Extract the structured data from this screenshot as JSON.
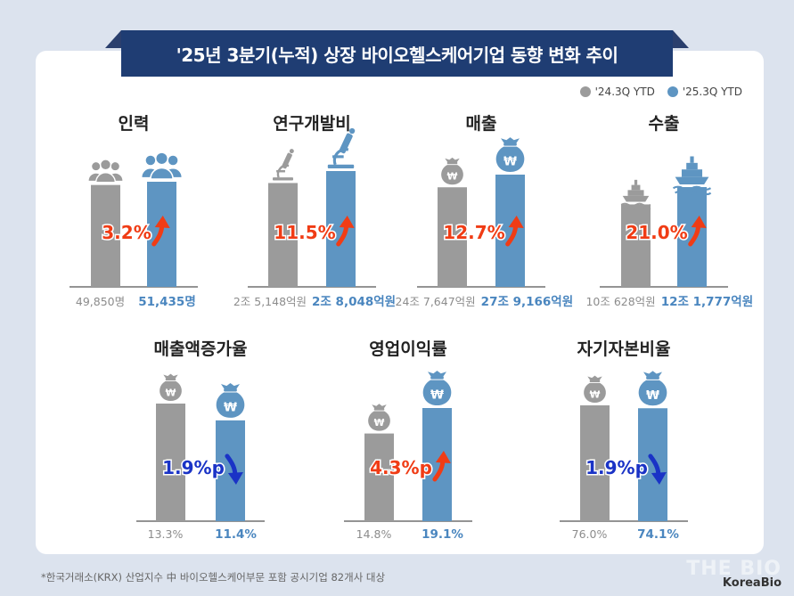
{
  "title": "'25년 3분기(누적) 상장 바이오헬스케어기업 동향 변화 추이",
  "legend": {
    "prev": "'24.3Q YTD",
    "curr": "'25.3Q YTD"
  },
  "colors": {
    "prev": "#9b9b9b",
    "curr": "#5e95c2",
    "up": "#f03c15",
    "down": "#1a33c6",
    "prev_text": "#8c8c8c",
    "curr_text": "#4a86bf"
  },
  "footnote": "*한국거래소(KRX) 산업지수 中 바이오헬스케어부문 포함 공시기업 82개사 대상",
  "brand": {
    "the": "THE BIO",
    "koreabio": "KoreaBio"
  },
  "chart_data": [
    {
      "type": "bar",
      "title": "인력",
      "categories": [
        "'24.3Q YTD",
        "'25.3Q YTD"
      ],
      "values": [
        49850,
        51435
      ],
      "unit": "명",
      "labels": [
        "49,850명",
        "51,435명"
      ],
      "change": "3.2%",
      "direction": "up",
      "icon": "people-icon"
    },
    {
      "type": "bar",
      "title": "연구개발비",
      "categories": [
        "'24.3Q YTD",
        "'25.3Q YTD"
      ],
      "values": [
        25148,
        28048
      ],
      "unit": "억원",
      "labels": [
        "2조 5,148억원",
        "2조 8,048억원"
      ],
      "change": "11.5%",
      "direction": "up",
      "icon": "microscope-icon"
    },
    {
      "type": "bar",
      "title": "매출",
      "categories": [
        "'24.3Q YTD",
        "'25.3Q YTD"
      ],
      "values": [
        247647,
        279166
      ],
      "unit": "억원",
      "labels": [
        "24조 7,647억원",
        "27조 9,166억원"
      ],
      "change": "12.7%",
      "direction": "up",
      "icon": "money-bag-icon"
    },
    {
      "type": "bar",
      "title": "수출",
      "categories": [
        "'24.3Q YTD",
        "'25.3Q YTD"
      ],
      "values": [
        100628,
        121777
      ],
      "unit": "억원",
      "labels": [
        "10조 628억원",
        "12조 1,777억원"
      ],
      "change": "21.0%",
      "direction": "up",
      "icon": "ship-icon"
    },
    {
      "type": "bar",
      "title": "매출액증가율",
      "categories": [
        "'24.3Q YTD",
        "'25.3Q YTD"
      ],
      "values": [
        13.3,
        11.4
      ],
      "unit": "%",
      "labels": [
        "13.3%",
        "11.4%"
      ],
      "change": "1.9%p",
      "direction": "down",
      "icon": "money-bag-icon"
    },
    {
      "type": "bar",
      "title": "영업이익률",
      "categories": [
        "'24.3Q YTD",
        "'25.3Q YTD"
      ],
      "values": [
        14.8,
        19.1
      ],
      "unit": "%",
      "labels": [
        "14.8%",
        "19.1%"
      ],
      "change": "4.3%p",
      "direction": "up",
      "icon": "money-bag-icon"
    },
    {
      "type": "bar",
      "title": "자기자본비율",
      "categories": [
        "'24.3Q YTD",
        "'25.3Q YTD"
      ],
      "values": [
        76.0,
        74.1
      ],
      "unit": "%",
      "labels": [
        "76.0%",
        "74.1%"
      ],
      "change": "1.9%p",
      "direction": "down",
      "icon": "money-bag-icon"
    }
  ]
}
